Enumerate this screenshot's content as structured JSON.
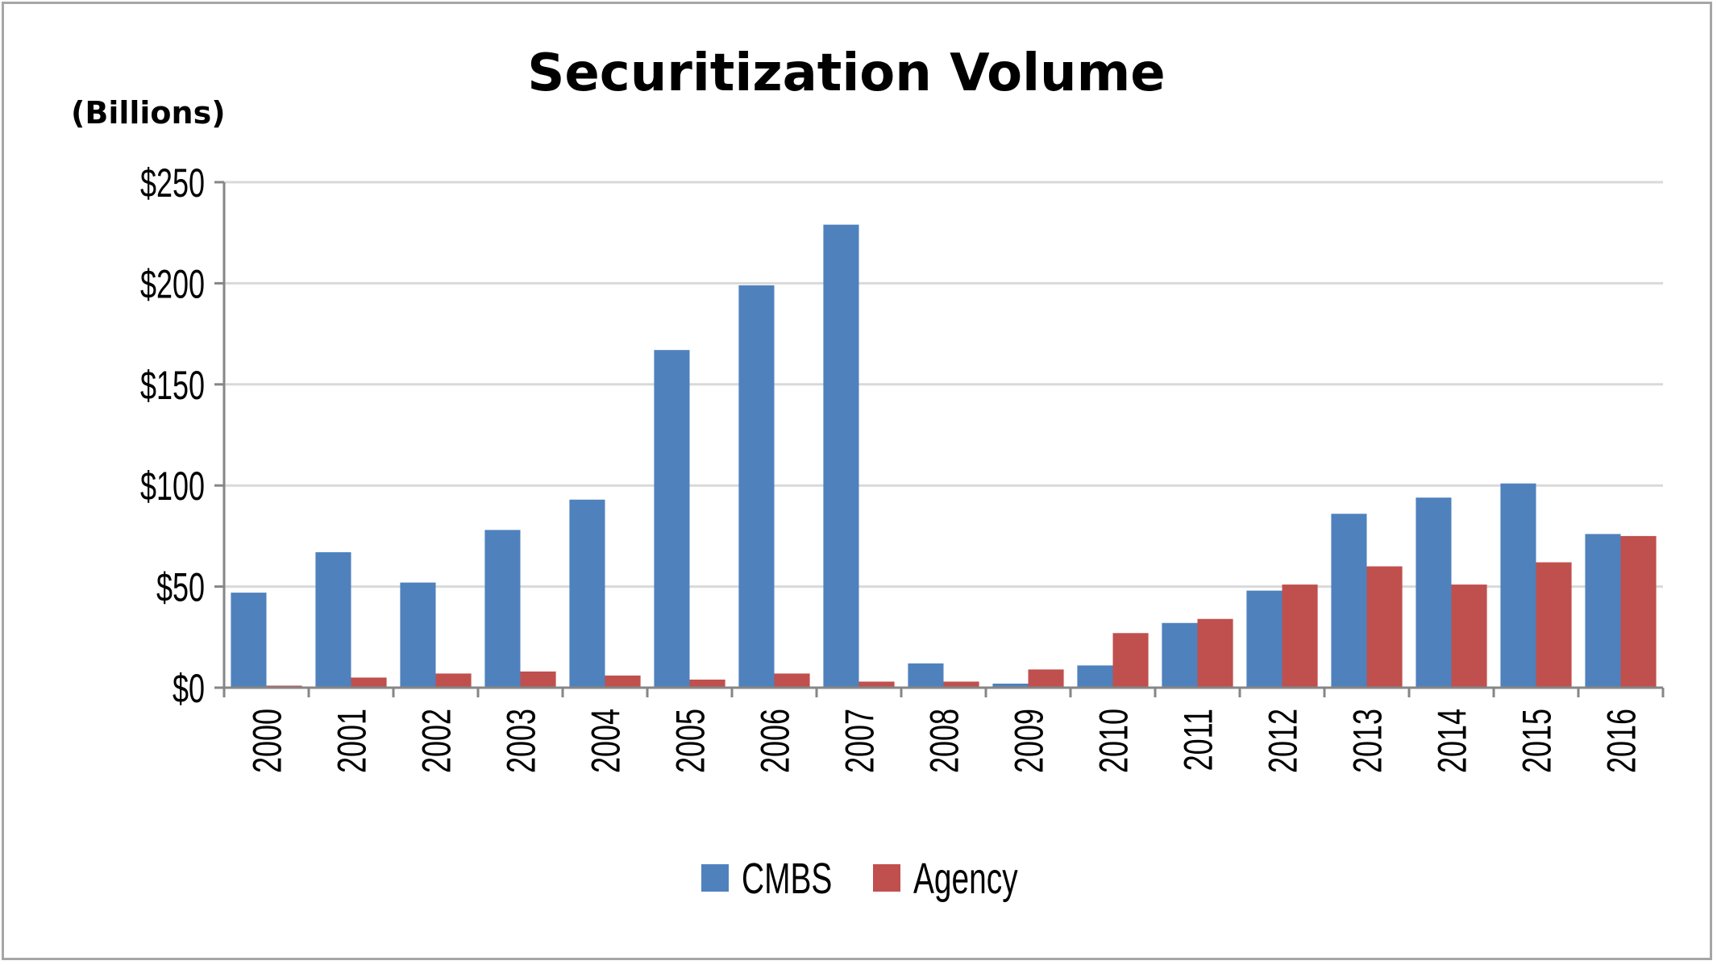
{
  "chart_data": {
    "type": "bar",
    "title": "Securitization Volume",
    "ylabel": "(Billions)",
    "xlabel": "",
    "ylim": [
      0,
      250
    ],
    "yticks": [
      0,
      50,
      100,
      150,
      200,
      250
    ],
    "ytick_labels": [
      "$0",
      "$50",
      "$100",
      "$150",
      "$200",
      "$250"
    ],
    "grid": true,
    "legend_position": "bottom",
    "categories": [
      "2000",
      "2001",
      "2002",
      "2003",
      "2004",
      "2005",
      "2006",
      "2007",
      "2008",
      "2009",
      "2010",
      "2011",
      "2012",
      "2013",
      "2014",
      "2015",
      "2016"
    ],
    "series": [
      {
        "name": "CMBS",
        "color": "#4f81bd",
        "values": [
          47,
          67,
          52,
          78,
          93,
          167,
          199,
          229,
          12,
          2,
          11,
          32,
          48,
          86,
          94,
          101,
          76
        ]
      },
      {
        "name": "Agency",
        "color": "#c0504d",
        "values": [
          1,
          5,
          7,
          8,
          6,
          4,
          7,
          3,
          3,
          9,
          27,
          34,
          51,
          60,
          51,
          62,
          75
        ]
      }
    ]
  }
}
